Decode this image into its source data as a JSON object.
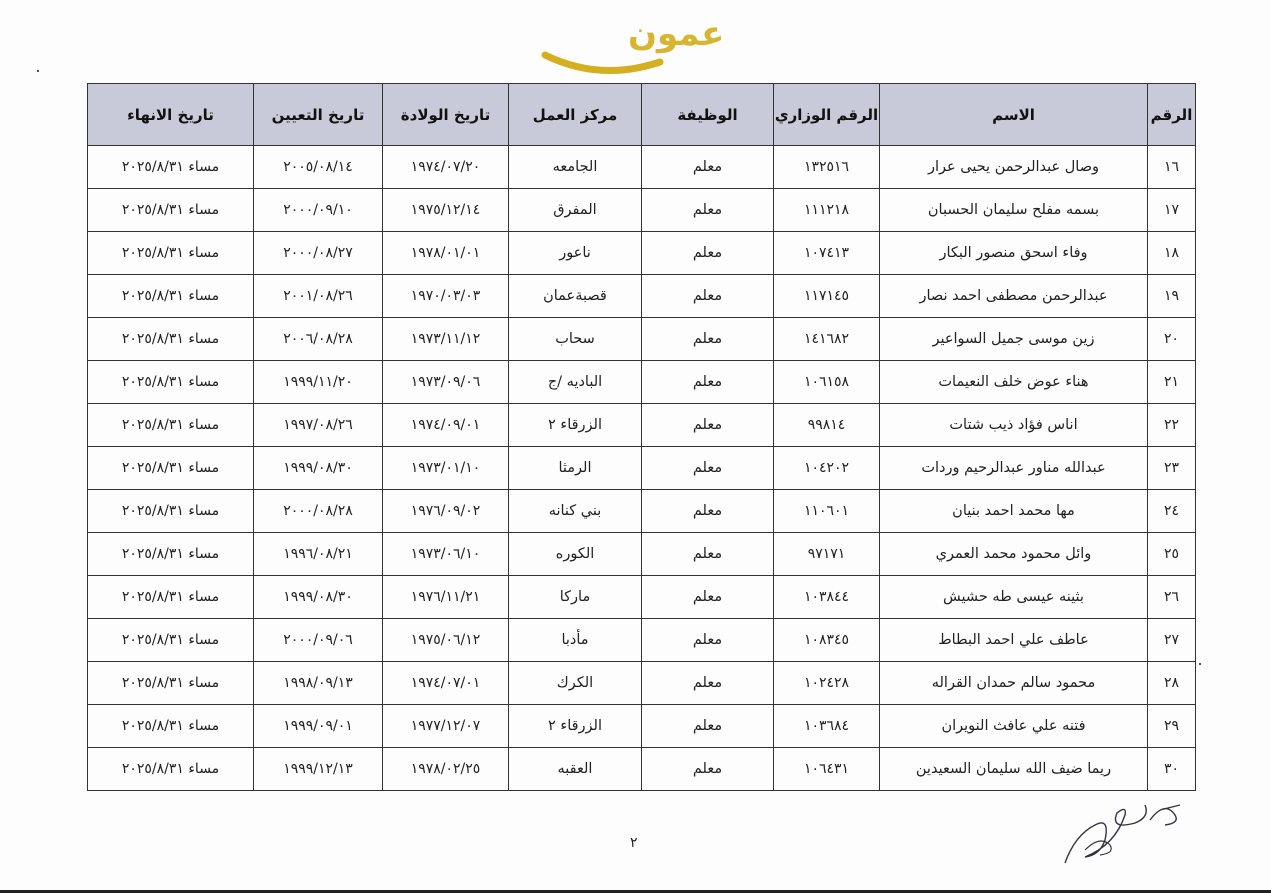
{
  "table": {
    "headers": [
      "الرقم",
      "الاسم",
      "الرقم الوزاري",
      "الوظيفة",
      "مركز العمل",
      "تاريخ الولادة",
      "تاريخ التعيين",
      "تاريخ الانهاء"
    ],
    "rows": [
      [
        "١٦",
        "وصال عبدالرحمن يحيى عرار",
        "١٣٢٥١٦",
        "معلم",
        "الجامعه",
        "١٩٧٤/٠٧/٢٠",
        "٢٠٠٥/٠٨/١٤",
        "مساء ٢٠٢٥/٨/٣١"
      ],
      [
        "١٧",
        "بسمه مفلح سليمان الحسبان",
        "١١١٢١٨",
        "معلم",
        "المفرق",
        "١٩٧٥/١٢/١٤",
        "٢٠٠٠/٠٩/١٠",
        "مساء ٢٠٢٥/٨/٣١"
      ],
      [
        "١٨",
        "وفاء اسحق منصور البكار",
        "١٠٧٤١٣",
        "معلم",
        "ناعور",
        "١٩٧٨/٠١/٠١",
        "٢٠٠٠/٠٨/٢٧",
        "مساء ٢٠٢٥/٨/٣١"
      ],
      [
        "١٩",
        "عبدالرحمن مصطفى احمد نصار",
        "١١٧١٤٥",
        "معلم",
        "قصبةعمان",
        "١٩٧٠/٠٣/٠٣",
        "٢٠٠١/٠٨/٢٦",
        "مساء ٢٠٢٥/٨/٣١"
      ],
      [
        "٢٠",
        "زين موسى جميل السواعير",
        "١٤١٦٨٢",
        "معلم",
        "سحاب",
        "١٩٧٣/١١/١٢",
        "٢٠٠٦/٠٨/٢٨",
        "مساء ٢٠٢٥/٨/٣١"
      ],
      [
        "٢١",
        "هناء عوض خلف النعيمات",
        "١٠٦١٥٨",
        "معلم",
        "الباديه /ج",
        "١٩٧٣/٠٩/٠٦",
        "١٩٩٩/١١/٢٠",
        "مساء ٢٠٢٥/٨/٣١"
      ],
      [
        "٢٢",
        "اناس فؤاد ذيب شتات",
        "٩٩٨١٤",
        "معلم",
        "الزرقاء ٢",
        "١٩٧٤/٠٩/٠١",
        "١٩٩٧/٠٨/٢٦",
        "مساء ٢٠٢٥/٨/٣١"
      ],
      [
        "٢٣",
        "عبدالله مناور عبدالرحيم وردات",
        "١٠٤٢٠٢",
        "معلم",
        "الرمثا",
        "١٩٧٣/٠١/١٠",
        "١٩٩٩/٠٨/٣٠",
        "مساء ٢٠٢٥/٨/٣١"
      ],
      [
        "٢٤",
        "مها محمد احمد بنيان",
        "١١٠٦٠١",
        "معلم",
        "بني كنانه",
        "١٩٧٦/٠٩/٠٢",
        "٢٠٠٠/٠٨/٢٨",
        "مساء ٢٠٢٥/٨/٣١"
      ],
      [
        "٢٥",
        "وائل محمود محمد العمري",
        "٩٧١٧١",
        "معلم",
        "الكوره",
        "١٩٧٣/٠٦/١٠",
        "١٩٩٦/٠٨/٢١",
        "مساء ٢٠٢٥/٨/٣١"
      ],
      [
        "٢٦",
        "بثينه عيسى طه حشيش",
        "١٠٣٨٤٤",
        "معلم",
        "ماركا",
        "١٩٧٦/١١/٢١",
        "١٩٩٩/٠٨/٣٠",
        "مساء ٢٠٢٥/٨/٣١"
      ],
      [
        "٢٧",
        "عاطف علي احمد البطاط",
        "١٠٨٣٤٥",
        "معلم",
        "مأدبا",
        "١٩٧٥/٠٦/١٢",
        "٢٠٠٠/٠٩/٠٦",
        "مساء ٢٠٢٥/٨/٣١"
      ],
      [
        "٢٨",
        "محمود سالم حمدان القراله",
        "١٠٢٤٢٨",
        "معلم",
        "الكرك",
        "١٩٧٤/٠٧/٠١",
        "١٩٩٨/٠٩/١٣",
        "مساء ٢٠٢٥/٨/٣١"
      ],
      [
        "٢٩",
        "فتنه علي عافث النويران",
        "١٠٣٦٨٤",
        "معلم",
        "الزرقاء ٢",
        "١٩٧٧/١٢/٠٧",
        "١٩٩٩/٠٩/٠١",
        "مساء ٢٠٢٥/٨/٣١"
      ],
      [
        "٣٠",
        "ريما ضيف الله سليمان السعيدين",
        "١٠٦٤٣١",
        "معلم",
        "العقبه",
        "١٩٧٨/٠٢/٢٥",
        "١٩٩٩/١٢/١٣",
        "مساء ٢٠٢٥/٨/٣١"
      ]
    ]
  },
  "page_number": "٢",
  "watermark": {
    "text": "عمون",
    "color": "#d4af1f"
  },
  "colors": {
    "header_bg": "#c8cad9"
  }
}
